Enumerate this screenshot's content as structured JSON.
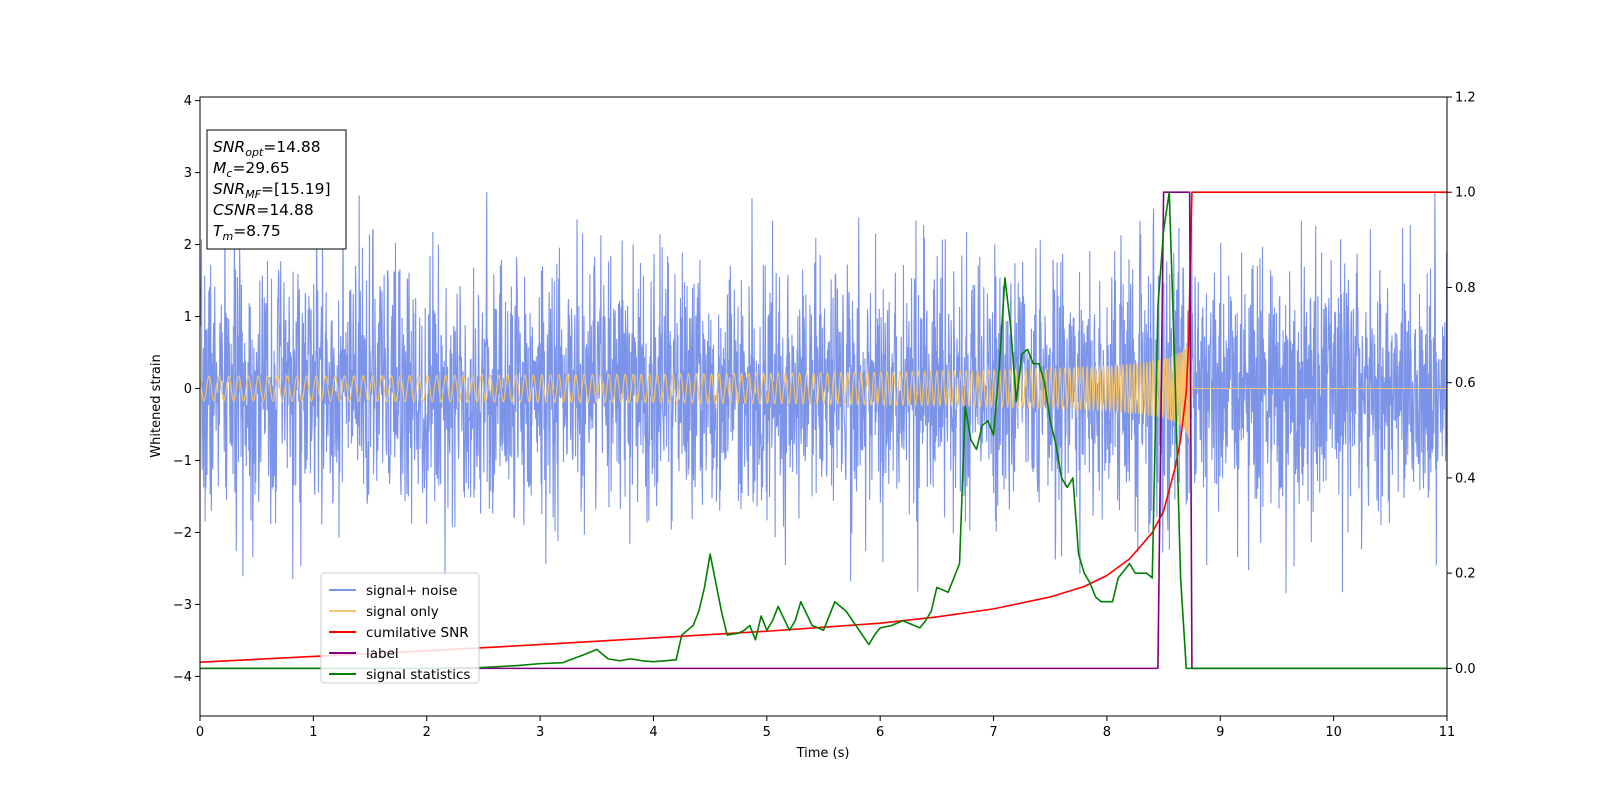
{
  "chart_data": {
    "type": "line",
    "xlabel": "Time (s)",
    "ylabel": "Whitened strain",
    "xlim": [
      0,
      11
    ],
    "ylim_left": [
      -4.55,
      4.05
    ],
    "ylim_right": [
      -0.1,
      1.2
    ],
    "xticks": [
      0,
      1,
      2,
      3,
      4,
      5,
      6,
      7,
      8,
      9,
      10,
      11
    ],
    "yticks_left": [
      -4,
      -3,
      -2,
      -1,
      0,
      1,
      2,
      3,
      4
    ],
    "yticks_right": [
      "0.0",
      "0.2",
      "0.4",
      "0.6",
      "0.8",
      "1.0",
      "1.2"
    ],
    "grid": false,
    "legend_position": "lower-left",
    "annotation": {
      "lines": [
        {
          "var": "SNR",
          "sub": "opt",
          "value": "=14.88"
        },
        {
          "var": "M",
          "sub": "c",
          "value": "=29.65"
        },
        {
          "var": "SNR",
          "sub": "MF",
          "value": "=[15.19]"
        },
        {
          "var": "CSNR",
          "sub": "",
          "value": "=14.88"
        },
        {
          "var": "T",
          "sub": "m",
          "value": "=8.75"
        }
      ]
    },
    "series": [
      {
        "name": "signal+ noise",
        "axis": "left",
        "color": "#7b93e8",
        "description_stats": {
          "std": 0.9,
          "seed": 7
        }
      },
      {
        "name": "signal only",
        "axis": "left",
        "color": "#f5c46b",
        "merger_time": 8.75
      },
      {
        "name": "cumilative SNR",
        "axis": "right",
        "color": "#ff0000",
        "x": [
          0,
          1,
          2,
          3,
          4,
          5,
          6,
          6.5,
          7,
          7.5,
          7.8,
          8.0,
          8.2,
          8.4,
          8.5,
          8.6,
          8.65,
          8.7,
          8.72,
          8.75,
          8.8,
          11
        ],
        "y": [
          0.013,
          0.025,
          0.037,
          0.05,
          0.064,
          0.078,
          0.095,
          0.108,
          0.125,
          0.15,
          0.172,
          0.195,
          0.23,
          0.285,
          0.33,
          0.42,
          0.48,
          0.58,
          0.68,
          1.0,
          1.0,
          1.0
        ]
      },
      {
        "name": "label",
        "axis": "right",
        "color": "#800080",
        "x": [
          0,
          8.45,
          8.5,
          8.73,
          8.75,
          11
        ],
        "y": [
          0,
          0,
          1,
          1,
          0,
          0
        ]
      },
      {
        "name": "signal statistics",
        "axis": "right",
        "color": "#008000",
        "x": [
          0,
          2.0,
          2.5,
          2.8,
          3.0,
          3.2,
          3.4,
          3.5,
          3.6,
          3.7,
          3.8,
          3.9,
          4.0,
          4.1,
          4.2,
          4.25,
          4.35,
          4.4,
          4.45,
          4.5,
          4.55,
          4.6,
          4.65,
          4.7,
          4.75,
          4.8,
          4.85,
          4.9,
          4.95,
          5.0,
          5.05,
          5.1,
          5.2,
          5.25,
          5.3,
          5.4,
          5.5,
          5.6,
          5.65,
          5.7,
          5.8,
          5.9,
          5.95,
          6.0,
          6.1,
          6.2,
          6.3,
          6.35,
          6.4,
          6.45,
          6.5,
          6.6,
          6.7,
          6.75,
          6.8,
          6.85,
          6.9,
          6.95,
          7.0,
          7.05,
          7.1,
          7.15,
          7.2,
          7.25,
          7.3,
          7.35,
          7.4,
          7.45,
          7.5,
          7.55,
          7.6,
          7.65,
          7.7,
          7.75,
          7.8,
          7.85,
          7.9,
          7.95,
          8.0,
          8.05,
          8.1,
          8.2,
          8.25,
          8.3,
          8.35,
          8.4,
          8.45,
          8.5,
          8.55,
          8.6,
          8.65,
          8.7,
          8.75,
          8.8,
          11
        ],
        "y": [
          0.0,
          0.0,
          0.002,
          0.006,
          0.01,
          0.012,
          0.03,
          0.04,
          0.02,
          0.016,
          0.02,
          0.016,
          0.014,
          0.016,
          0.018,
          0.07,
          0.09,
          0.12,
          0.17,
          0.24,
          0.18,
          0.12,
          0.07,
          0.072,
          0.074,
          0.08,
          0.09,
          0.06,
          0.11,
          0.08,
          0.1,
          0.13,
          0.08,
          0.1,
          0.14,
          0.09,
          0.08,
          0.14,
          0.13,
          0.12,
          0.085,
          0.05,
          0.07,
          0.085,
          0.09,
          0.1,
          0.09,
          0.085,
          0.1,
          0.12,
          0.17,
          0.16,
          0.22,
          0.55,
          0.48,
          0.46,
          0.51,
          0.52,
          0.49,
          0.63,
          0.82,
          0.72,
          0.56,
          0.66,
          0.67,
          0.64,
          0.64,
          0.6,
          0.52,
          0.47,
          0.4,
          0.38,
          0.4,
          0.24,
          0.2,
          0.18,
          0.15,
          0.14,
          0.14,
          0.14,
          0.19,
          0.22,
          0.2,
          0.2,
          0.2,
          0.19,
          0.76,
          0.92,
          1.0,
          0.62,
          0.19,
          0.0,
          0.0,
          0.0,
          0.0
        ]
      }
    ]
  }
}
